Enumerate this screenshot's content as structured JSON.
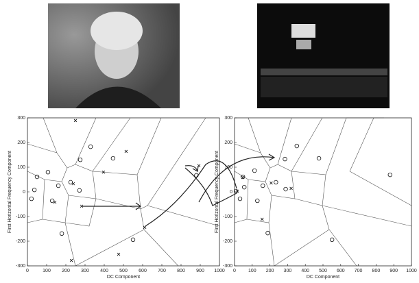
{
  "chart_data": [
    {
      "type": "scatter",
      "xlabel": "DC Component",
      "ylabel": "First Horizontal Frequency Component",
      "xlim": [
        0,
        1000
      ],
      "ylim": [
        -300,
        300
      ],
      "xticks": [
        0,
        100,
        200,
        300,
        400,
        500,
        600,
        700,
        800,
        900,
        1000
      ],
      "yticks": [
        -300,
        -200,
        -100,
        0,
        100,
        200,
        300
      ],
      "series": [
        {
          "marker": "o",
          "color": "#111",
          "x": [
            329,
            275,
            446,
            107,
            50,
            36,
            21,
            161,
            225,
            271,
            129,
            179,
            550,
            880
          ],
          "values": [
            183,
            130,
            136,
            80,
            61,
            8,
            -28,
            25,
            39,
            6,
            -36,
            -169,
            -194,
            67
          ]
        },
        {
          "marker": "x",
          "color": "#111",
          "x": [
            250,
            514,
            396,
            239,
            143,
            282,
            611,
            475,
            229,
            893
          ],
          "values": [
            289,
            164,
            80,
            33,
            -42,
            -58,
            -144,
            -253,
            -278,
            106
          ]
        }
      ]
    },
    {
      "type": "scatter",
      "xlabel": "DC Component",
      "ylabel": "First Horizontal Frequency Component",
      "xlim": [
        0,
        1000
      ],
      "ylim": [
        -300,
        300
      ],
      "xticks": [
        0,
        100,
        200,
        300,
        400,
        500,
        600,
        700,
        800,
        900,
        1000
      ],
      "yticks": [
        -300,
        -200,
        -100,
        0,
        100,
        200,
        300
      ],
      "series": [
        {
          "marker": "o",
          "color": "#111",
          "x": [
            352,
            477,
            285,
            113,
            47,
            55,
            160,
            234,
            289,
            8,
            31,
            129,
            188,
            551,
            879
          ],
          "values": [
            186,
            136,
            133,
            86,
            61,
            19,
            25,
            39,
            11,
            3,
            -28,
            -36,
            -167,
            -194,
            69
          ]
        },
        {
          "marker": "x",
          "color": "#111",
          "x": [
            47,
            207,
            320,
            156,
            16
          ],
          "values": [
            58,
            36,
            14,
            -111,
            3
          ]
        }
      ]
    }
  ]
}
